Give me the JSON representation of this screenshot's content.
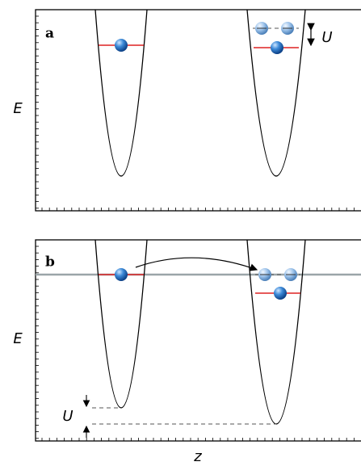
{
  "panels": [
    {
      "label": "a",
      "y_axis": "E",
      "annotation": "U"
    },
    {
      "label": "b",
      "y_axis": "E",
      "annotation": "U"
    }
  ],
  "x_axis": "z"
}
